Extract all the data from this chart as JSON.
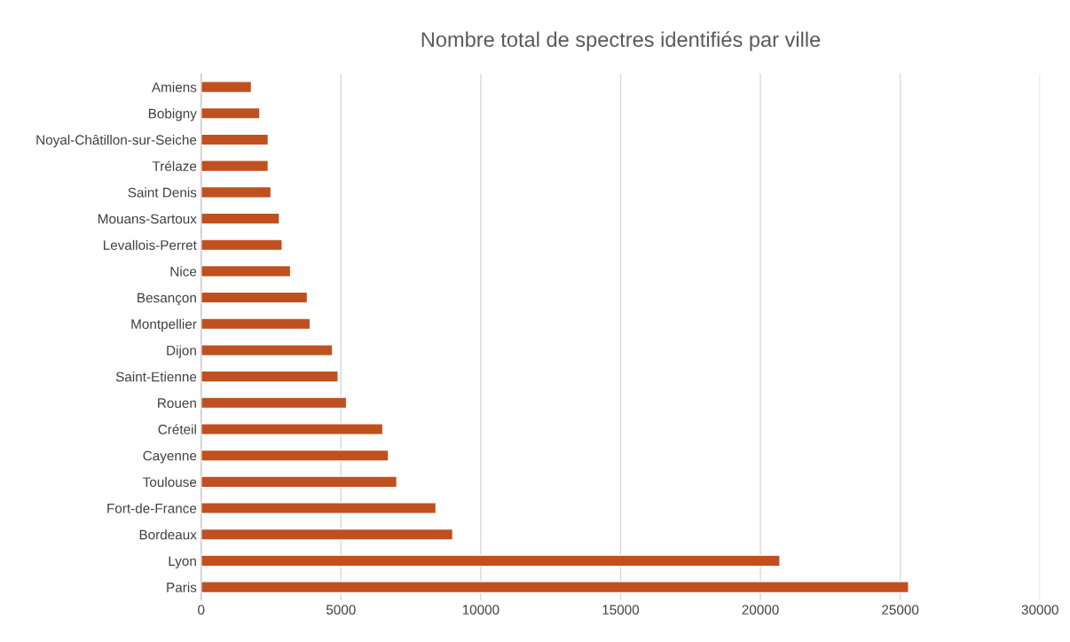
{
  "chart_data": {
    "type": "bar",
    "orientation": "horizontal",
    "title": "Nombre total de spectres identifiés par ville",
    "categories": [
      "Amiens",
      "Bobigny",
      "Noyal-Châtillon-sur-Seiche",
      "Trélaze",
      "Saint Denis",
      "Mouans-Sartoux",
      "Levallois-Perret",
      "Nice",
      "Besançon",
      "Montpellier",
      "Dijon",
      "Saint-Etienne",
      "Rouen",
      "Créteil",
      "Cayenne",
      "Toulouse",
      "Fort-de-France",
      "Bordeaux",
      "Lyon",
      "Paris"
    ],
    "values": [
      1800,
      2100,
      2400,
      2400,
      2500,
      2800,
      2900,
      3200,
      3800,
      3900,
      4700,
      4900,
      5200,
      6500,
      6700,
      7000,
      8400,
      9000,
      20700,
      25300
    ],
    "color": "#c0501f",
    "xlim": [
      0,
      30000
    ],
    "xticks": [
      0,
      5000,
      10000,
      15000,
      20000,
      25000,
      30000
    ],
    "grid": "x"
  }
}
